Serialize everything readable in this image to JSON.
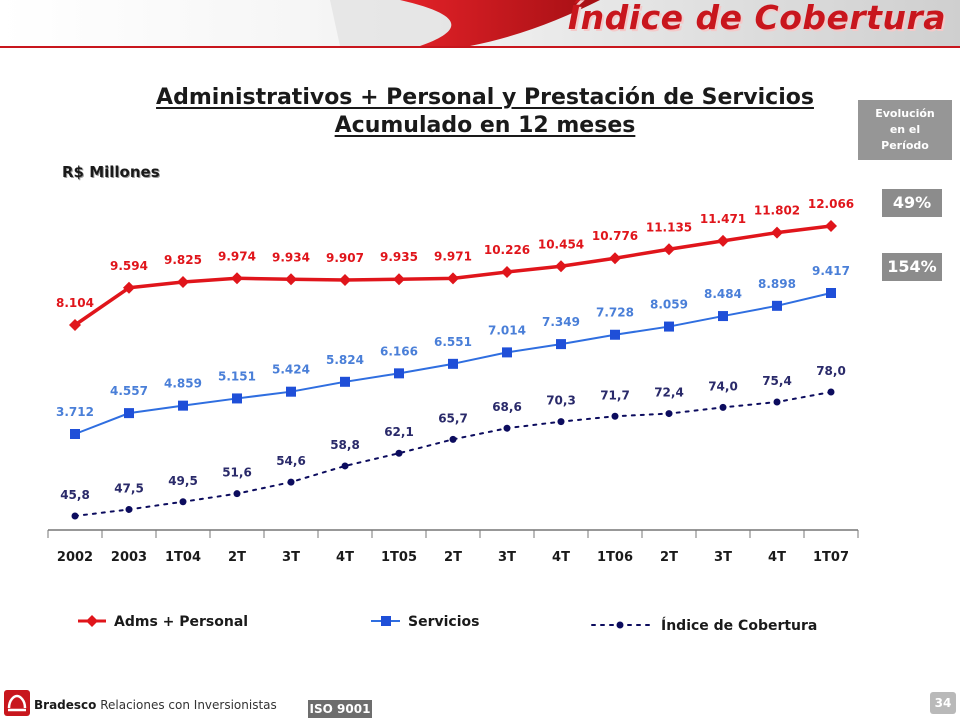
{
  "header": {
    "title": "Índice de Cobertura"
  },
  "chart_data": {
    "type": "line",
    "title": "Administrativos + Personal y Prestación de Servicios",
    "subtitle": "Acumulado en 12 meses",
    "ylabel": "R$ Millones",
    "categories": [
      "2002",
      "2003",
      "1T04",
      "2T",
      "3T",
      "4T",
      "1T05",
      "2T",
      "3T",
      "4T",
      "1T06",
      "2T",
      "3T",
      "4T",
      "1T07"
    ],
    "series": [
      {
        "name": "Adms + Personal",
        "color": "#e0151b",
        "marker": "diamond",
        "values": [
          8104,
          9594,
          9825,
          9974,
          9934,
          9907,
          9935,
          9971,
          10226,
          10454,
          10776,
          11135,
          11471,
          11802,
          12066
        ],
        "labels": [
          "8.104",
          "9.594",
          "9.825",
          "9.974",
          "9.934",
          "9.907",
          "9.935",
          "9.971",
          "10.226",
          "10.454",
          "10.776",
          "11.135",
          "11.471",
          "11.802",
          "12.066"
        ]
      },
      {
        "name": "Servicios",
        "color": "#2f6ee0",
        "marker": "square",
        "values": [
          3712,
          4557,
          4859,
          5151,
          5424,
          5824,
          6166,
          6551,
          7014,
          7349,
          7728,
          8059,
          8484,
          8898,
          9417
        ],
        "labels": [
          "3.712",
          "4.557",
          "4.859",
          "5.151",
          "5.424",
          "5.824",
          "6.166",
          "6.551",
          "7.014",
          "7.349",
          "7.728",
          "8.059",
          "8.484",
          "8.898",
          "9.417"
        ]
      },
      {
        "name": "Índice de Cobertura",
        "color": "#0c0c5e",
        "marker": "circle",
        "line_style": "dotted",
        "values": [
          45.8,
          47.5,
          49.5,
          51.6,
          54.6,
          58.8,
          62.1,
          65.7,
          68.6,
          70.3,
          71.7,
          72.4,
          74.0,
          75.4,
          78.0
        ],
        "labels": [
          "45,8",
          "47,5",
          "49,5",
          "51,6",
          "54,6",
          "58,8",
          "62,1",
          "65,7",
          "68,6",
          "70,3",
          "71,7",
          "72,4",
          "74,0",
          "75,4",
          "78,0"
        ]
      }
    ],
    "grid": false,
    "legend_position": "bottom"
  },
  "side_panel": {
    "evolution_lines": [
      "Evolución",
      "en el",
      "Período"
    ],
    "adms_growth": "49%",
    "servicios_growth": "154%"
  },
  "footer": {
    "brand": "Bradesco",
    "section": "Relaciones con Inversionistas",
    "iso": "ISO 9001",
    "page_number": "34"
  }
}
